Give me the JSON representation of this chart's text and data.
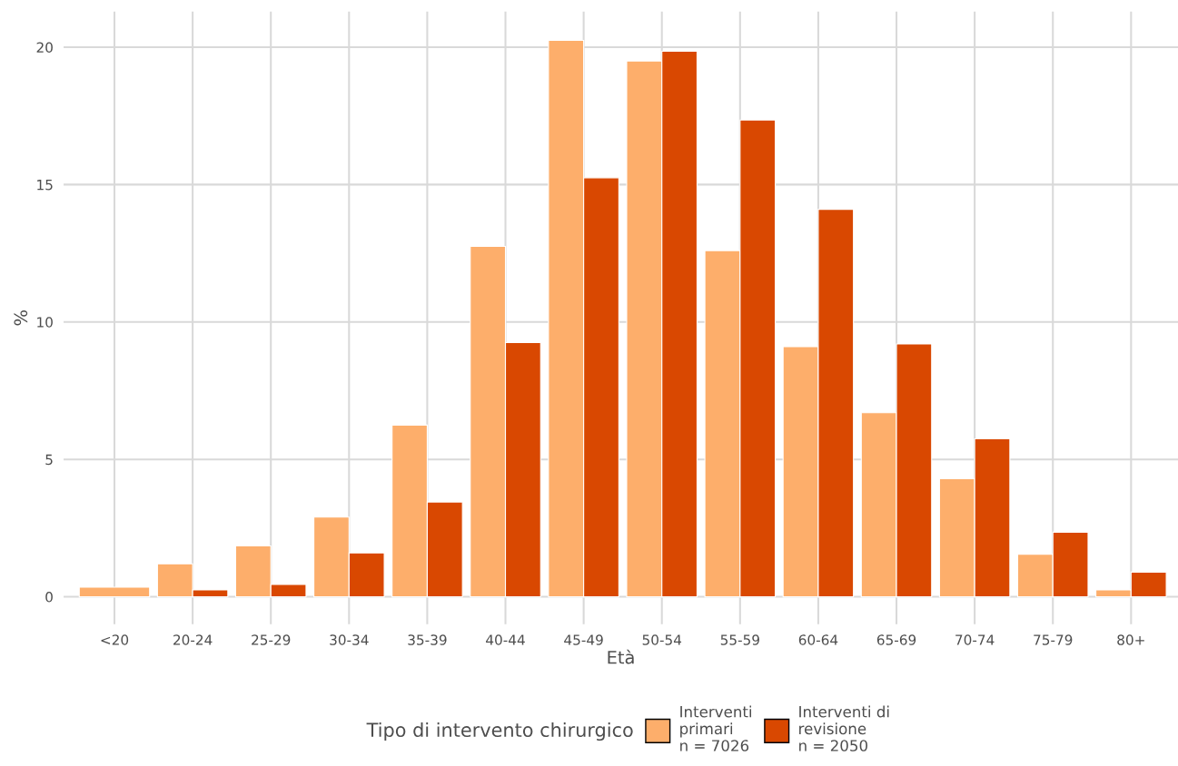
{
  "chart_data": {
    "type": "bar",
    "xlabel": "Età",
    "ylabel": "%",
    "legend_title": "Tipo di intervento chirurgico",
    "categories": [
      "<20",
      "20-24",
      "25-29",
      "30-34",
      "35-39",
      "40-44",
      "45-49",
      "50-54",
      "55-59",
      "60-64",
      "65-69",
      "70-74",
      "75-79",
      "80+"
    ],
    "series": [
      {
        "name": "Interventi\nprimari\nn = 7026",
        "color": "#fdae6b",
        "values": [
          0.35,
          1.2,
          1.85,
          2.9,
          6.25,
          12.75,
          20.25,
          19.5,
          12.6,
          9.1,
          6.7,
          4.3,
          1.55,
          0.25
        ]
      },
      {
        "name": "Interventi di\nrevisione\nn = 2050",
        "color": "#d94801",
        "values": [
          null,
          0.25,
          0.45,
          1.6,
          3.45,
          9.25,
          15.25,
          19.85,
          17.35,
          14.1,
          9.2,
          5.75,
          2.35,
          0.9
        ]
      }
    ],
    "ylim": [
      -1,
      21.3
    ],
    "yticks": [
      0,
      5,
      10,
      15,
      20
    ],
    "grid": true,
    "legend": "bottom"
  }
}
